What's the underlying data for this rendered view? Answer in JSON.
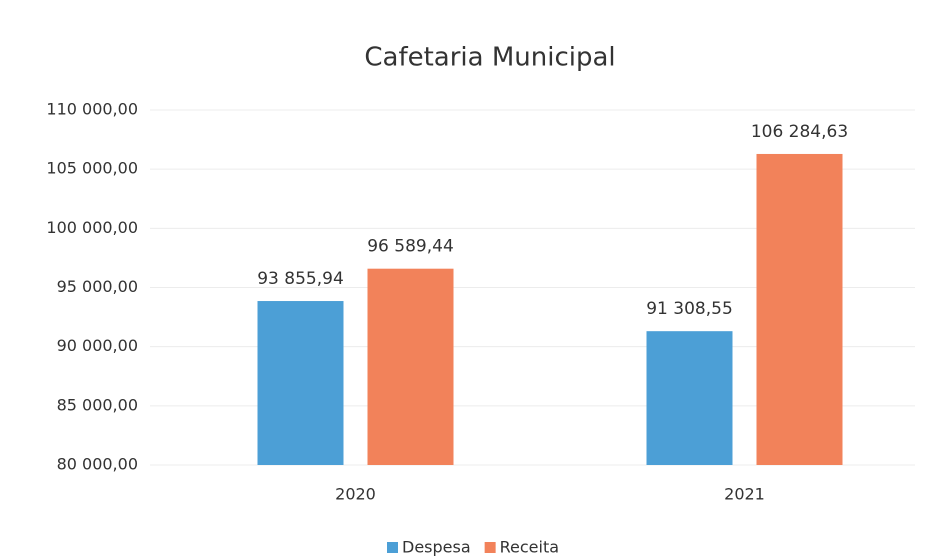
{
  "chart_data": {
    "type": "bar",
    "title": "Cafetaria Municipal",
    "categories": [
      "2020",
      "2021"
    ],
    "series": [
      {
        "name": "Despesa",
        "color": "#4c9fd6",
        "values": [
          93855.94,
          91308.55
        ],
        "value_labels": [
          "93 855,94",
          "91 308,55"
        ]
      },
      {
        "name": "Receita",
        "color": "#f2825a",
        "values": [
          96589.44,
          106284.63
        ],
        "value_labels": [
          "96 589,44",
          "106 284,63"
        ]
      }
    ],
    "ylim": [
      80000,
      110000
    ],
    "yticks": [
      {
        "value": 80000,
        "label": "80 000,00"
      },
      {
        "value": 85000,
        "label": "85 000,00"
      },
      {
        "value": 90000,
        "label": "90 000,00"
      },
      {
        "value": 95000,
        "label": "95 000,00"
      },
      {
        "value": 100000,
        "label": "100 000,00"
      },
      {
        "value": 105000,
        "label": "105 000,00"
      },
      {
        "value": 110000,
        "label": "110 000,00"
      }
    ],
    "grid": true,
    "legend": "bottom"
  }
}
